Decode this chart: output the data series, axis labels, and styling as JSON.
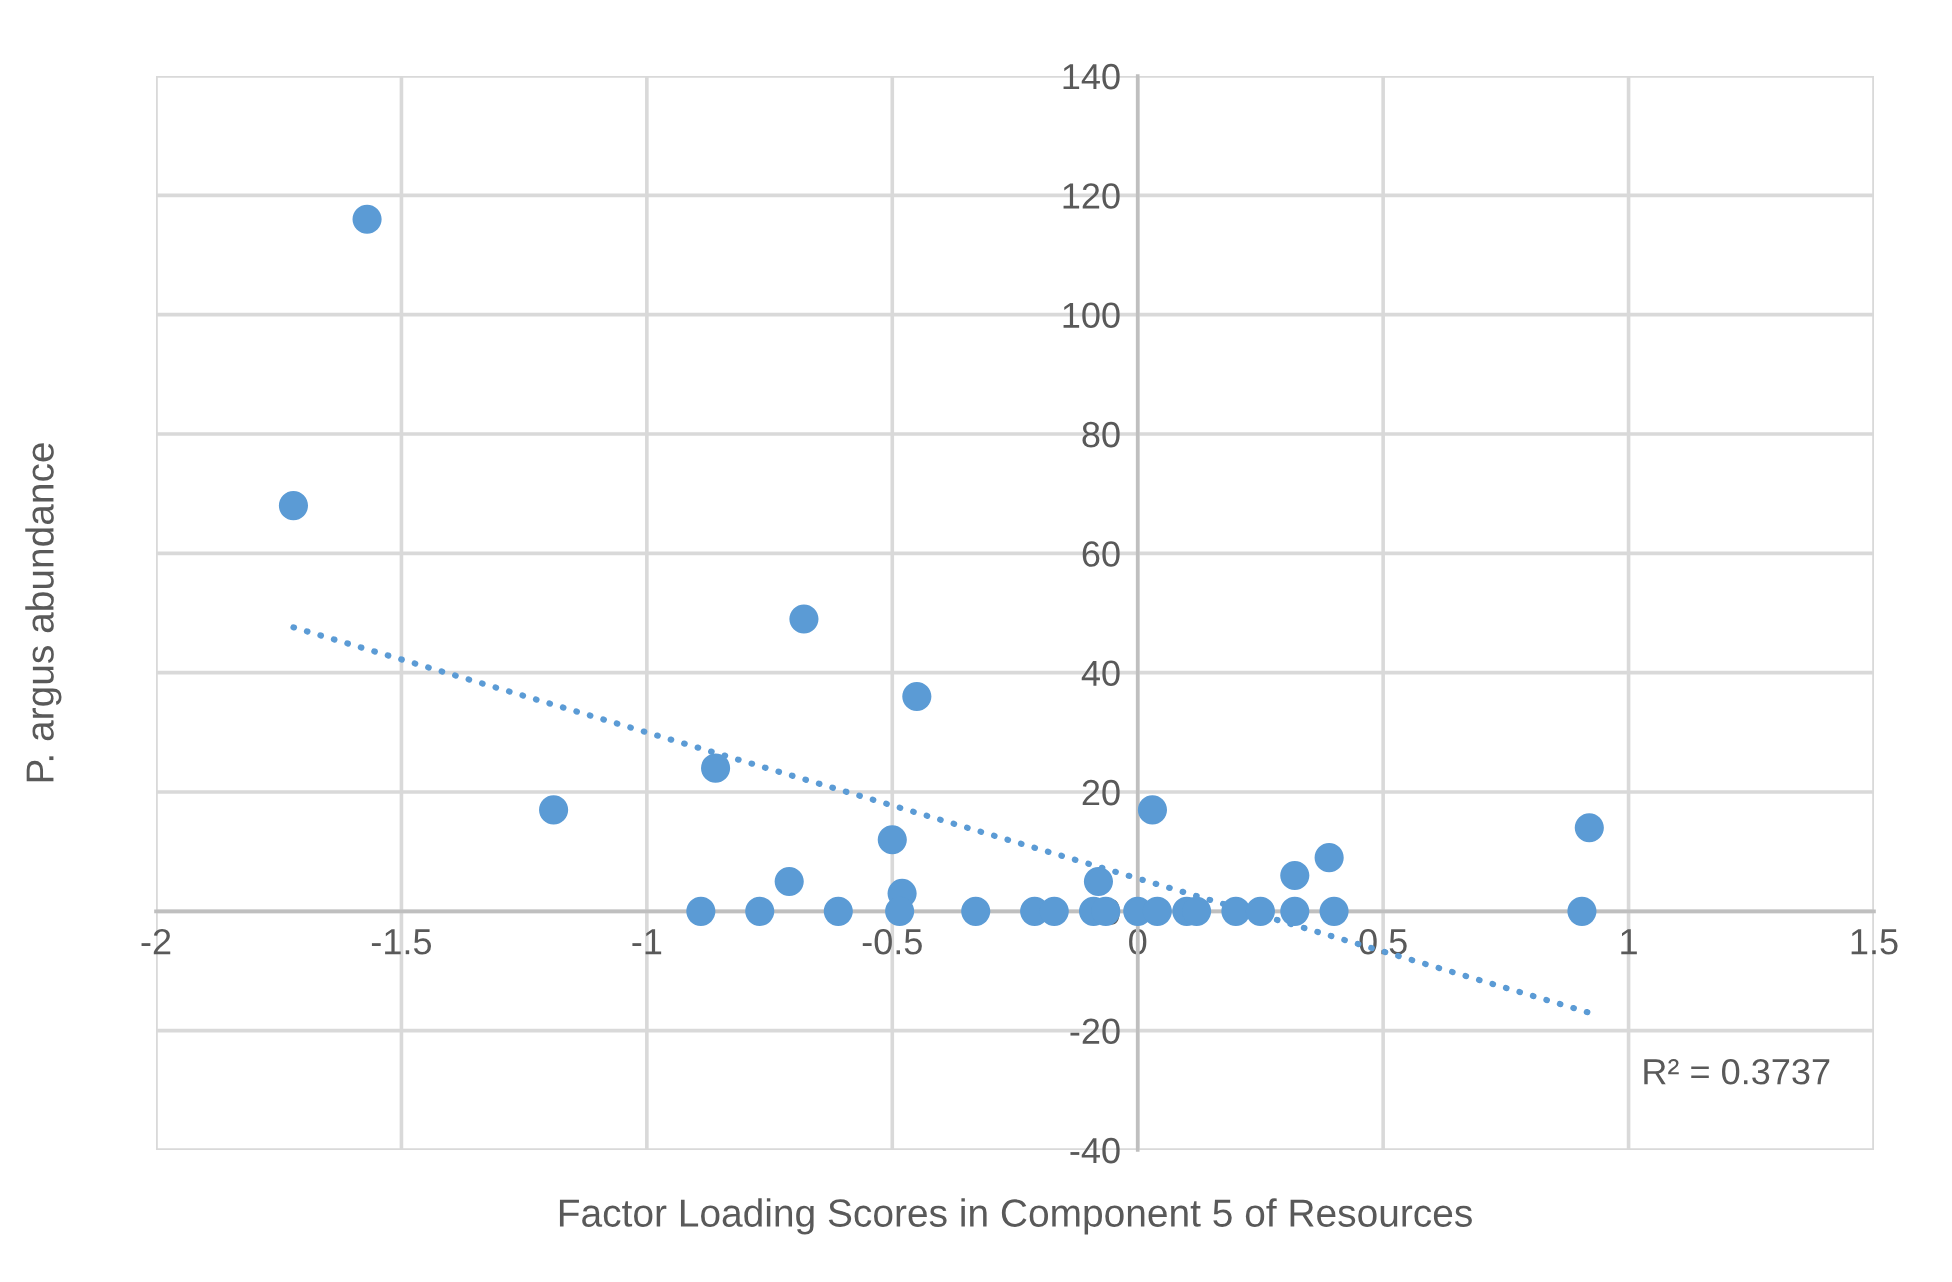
{
  "chart_data": {
    "type": "scatter",
    "xlabel": "Factor Loading Scores in Component 5 of Resources",
    "ylabel": "P. argus abundance",
    "annotations": [
      "R² = 0.3737"
    ],
    "xlim": [
      -2,
      1.5
    ],
    "xticks": [
      -2,
      -1.5,
      -1,
      -0.5,
      0,
      0.5,
      1,
      1.5
    ],
    "ylim": [
      -40,
      140
    ],
    "yticks": [
      -40,
      -20,
      0,
      20,
      40,
      60,
      80,
      100,
      120,
      140
    ],
    "grid": true,
    "series": [
      {
        "marker": "circle",
        "color": "#5b9bd5",
        "x": [
          -1.72,
          -1.57,
          -1.19,
          -0.86,
          -0.68,
          -0.45,
          -0.71,
          -0.5,
          -0.48,
          -0.08,
          0.03,
          0.32,
          0.39,
          0.92,
          -0.89,
          -0.77,
          -0.61,
          -0.485,
          -0.33,
          -0.21,
          -0.17,
          -0.09,
          -0.065,
          0.0,
          0.04,
          0.1,
          0.12,
          0.2,
          0.25,
          0.32,
          0.4,
          0.905
        ],
        "values": [
          68,
          116,
          17,
          24,
          49,
          36,
          5,
          12,
          3,
          5,
          17,
          6,
          9,
          14,
          0,
          0,
          0,
          0,
          0,
          0,
          0,
          0,
          0,
          0,
          0,
          0,
          0,
          0,
          0,
          0,
          0,
          0
        ]
      },
      {
        "type": "line",
        "color": "#5b9bd5",
        "line_style": "dotted",
        "x": [
          -1.72,
          0.92
        ],
        "values": [
          47.6,
          -17.0
        ]
      }
    ]
  }
}
